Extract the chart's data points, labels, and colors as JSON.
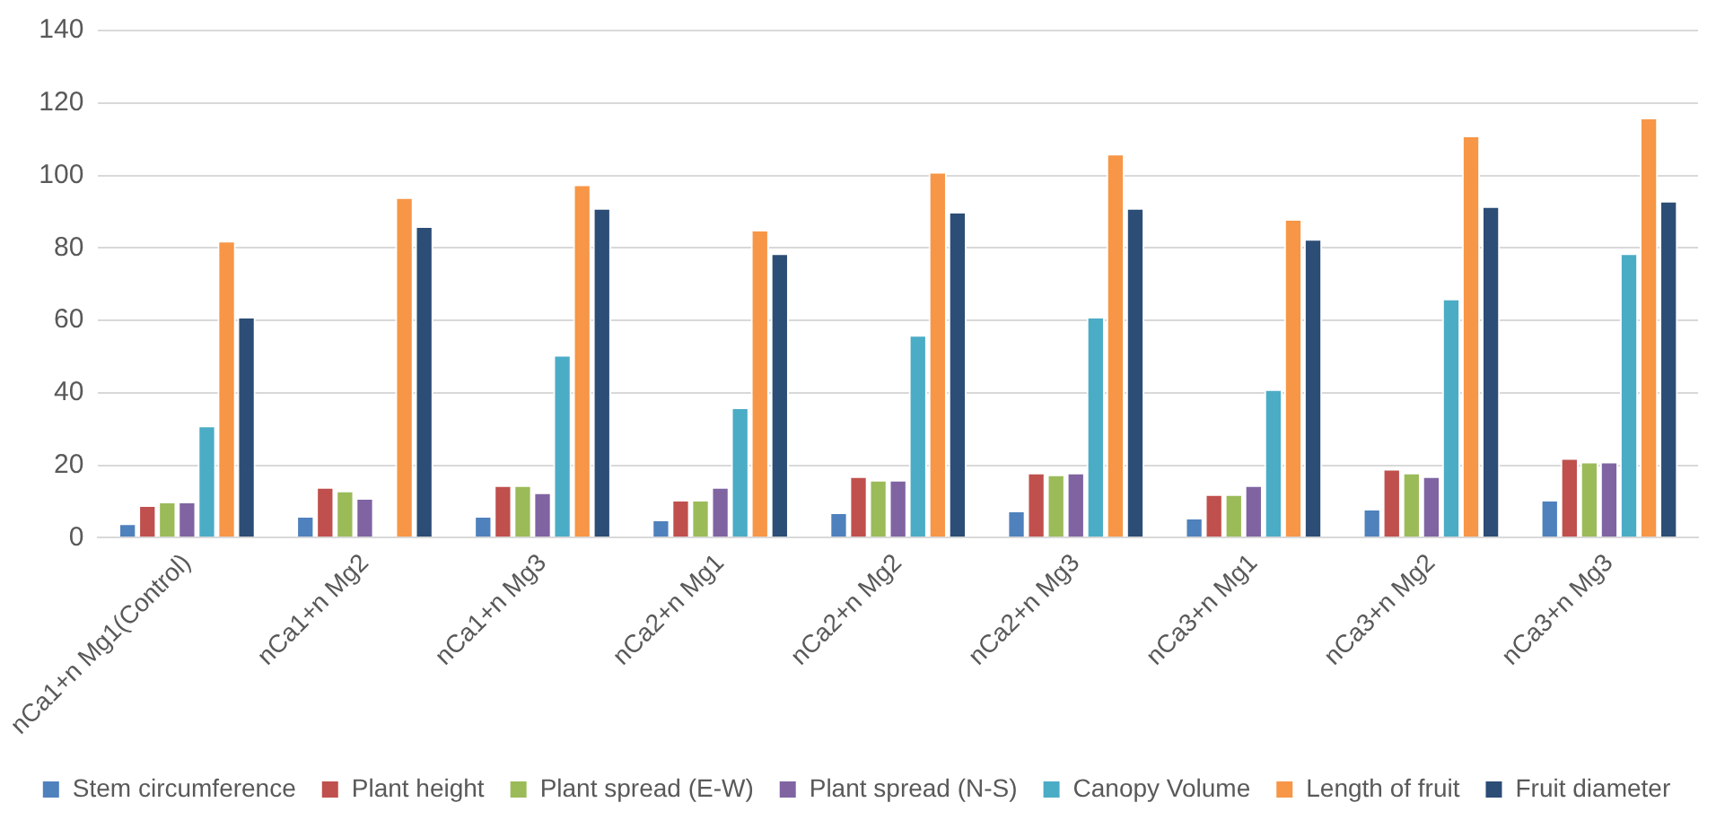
{
  "chart_data": {
    "type": "bar",
    "categories": [
      "nCa1+n Mg1(Control)",
      "nCa1+n Mg2",
      "nCa1+n Mg3",
      "nCa2+n Mg1",
      "nCa2+n Mg2",
      "nCa2+n Mg3",
      "nCa3+n Mg1",
      "nCa3+n Mg2",
      "nCa3+n Mg3"
    ],
    "series": [
      {
        "name": "Stem circumference",
        "color": "#4f81bd",
        "values": [
          4,
          6,
          6,
          5,
          7,
          7.5,
          5.5,
          8,
          10.5
        ]
      },
      {
        "name": "Plant height",
        "color": "#c0504d",
        "values": [
          9,
          14,
          14.5,
          10.5,
          17,
          18,
          12,
          19,
          22
        ]
      },
      {
        "name": "Plant spread (E-W)",
        "color": "#9bbb59",
        "values": [
          10,
          13,
          14.5,
          10.5,
          16,
          17.5,
          12,
          18,
          21
        ]
      },
      {
        "name": "Plant spread (N-S)",
        "color": "#8064a2",
        "values": [
          10,
          11,
          12.5,
          14,
          16,
          18,
          14.5,
          17,
          21
        ]
      },
      {
        "name": "Canopy Volume",
        "color": "#4bacc6",
        "values": [
          31,
          null,
          50.5,
          36,
          56,
          61,
          41,
          66,
          78.5
        ]
      },
      {
        "name": "Length of fruit",
        "color": "#f79646",
        "values": [
          82,
          94,
          97.5,
          85,
          101,
          106,
          88,
          111,
          116
        ]
      },
      {
        "name": "Fruit diameter",
        "color": "#2c4d75",
        "values": [
          61,
          86,
          91,
          78.5,
          90,
          91,
          82.5,
          91.5,
          93
        ]
      }
    ],
    "ylim": [
      0,
      140
    ],
    "yticks": [
      0,
      20,
      40,
      60,
      80,
      100,
      120,
      140
    ],
    "grid": "y",
    "legend": "bottom"
  }
}
